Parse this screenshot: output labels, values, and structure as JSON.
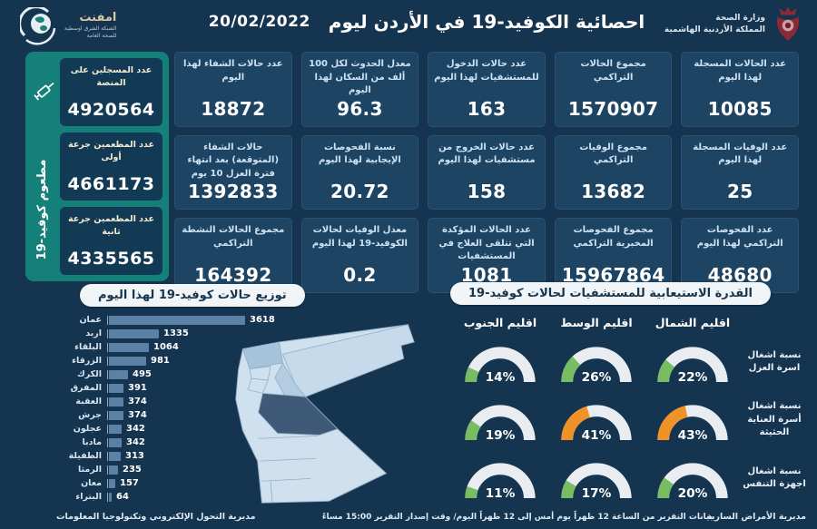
{
  "header": {
    "title": "احصائية الكوفيد-19 في الأردن ليوم",
    "date": "20/02/2022",
    "ministry": {
      "line1": "وزارة الصحة",
      "line2": "المملكة الأردنية الهاشمية"
    },
    "logo": {
      "name": "امفنت",
      "sub1": "الشبكة الشرق اوسطية",
      "sub2": "للصحة العامة"
    }
  },
  "vaccine_panel": {
    "side_label": "مطعوم كوفيد-19",
    "cards": [
      {
        "label": "عدد المسجلين على المنصة",
        "value": "4920564"
      },
      {
        "label": "عدد المطعمين جرعة أولى",
        "value": "4661173"
      },
      {
        "label": "عدد المطعمين جرعة ثانية",
        "value": "4335565"
      }
    ]
  },
  "stat_cards": [
    {
      "label": "عدد الحالات المسجلة لهذا اليوم",
      "value": "10085"
    },
    {
      "label": "مجموع الحالات التراكمي",
      "value": "1570907"
    },
    {
      "label": "عدد حالات الدخول للمستشفيات لهذا اليوم",
      "value": "163"
    },
    {
      "label": "معدل الحدوث لكل 100 ألف من السكان لهذا اليوم",
      "value": "96.3"
    },
    {
      "label": "عدد حالات الشفاء لهذا اليوم",
      "value": "18872"
    },
    {
      "label": "عدد الوفيات المسجلة لهذا اليوم",
      "value": "25"
    },
    {
      "label": "مجموع الوفيات التراكمي",
      "value": "13682"
    },
    {
      "label": "عدد حالات الخروج من مستشفيات لهذا اليوم",
      "value": "158"
    },
    {
      "label": "نسبة الفحوصات الإيجابية لهذا اليوم",
      "value": "20.72"
    },
    {
      "label": "حالات الشفاء (المتوقعة) بعد انتهاء فترة العزل 10 يوم",
      "value": "1392833"
    },
    {
      "label": "عدد الفحوصات التراكمي لهذا اليوم",
      "value": "48680"
    },
    {
      "label": "مجموع الفحوصات المخبرية التراكمي",
      "value": "15967864"
    },
    {
      "label": "عدد الحالات المؤكدة التي تتلقى العلاج في المستشفيات",
      "value": "1081"
    },
    {
      "label": "معدل الوفيات لحالات الكوفيد-19 لهذا اليوم",
      "value": "0.2"
    },
    {
      "label": "مجموع الحالات النشطة التراكمي",
      "value": "164392"
    }
  ],
  "chart_data": [
    {
      "type": "bar",
      "orientation": "horizontal",
      "title": "توزيع حالات كوفيد-19 لهذا اليوم",
      "categories": [
        "عمان",
        "اربد",
        "البلقاء",
        "الزرقاء",
        "الكرك",
        "المفرق",
        "العقبة",
        "جرش",
        "عجلون",
        "مادبا",
        "الطفيلة",
        "الرمثا",
        "معان",
        "البتراء"
      ],
      "values": [
        3618,
        1335,
        1064,
        981,
        495,
        391,
        374,
        374,
        342,
        342,
        313,
        235,
        157,
        64
      ],
      "xlim": [
        0,
        3618
      ],
      "bar_color": "#5b82a6",
      "legend": "none",
      "grid": false
    },
    {
      "type": "gauge-grid",
      "title": "القدرة الاستيعابية للمستشفيات لحالات كوفيد-19",
      "columns": [
        "اقليم الجنوب",
        "اقليم الوسط",
        "اقليم الشمال"
      ],
      "rows": [
        {
          "label": "نسبة اشغال اسرة العزل",
          "values": [
            14,
            26,
            22
          ],
          "colors": [
            "green",
            "green",
            "green"
          ]
        },
        {
          "label": "نسبة اشغال أسرة العناية الحثيثة",
          "values": [
            19,
            41,
            43
          ],
          "colors": [
            "green",
            "orange",
            "orange"
          ]
        },
        {
          "label": "نسبة اشغال اجهزة التنفس",
          "values": [
            11,
            17,
            20
          ],
          "colors": [
            "green",
            "green",
            "green"
          ]
        }
      ],
      "unit": "%",
      "range": [
        0,
        100
      ]
    }
  ],
  "footer": {
    "left": "مديرية التحول الإلكتروني وتكنولوجيا المعلومات",
    "center": "بيانات التقرير من الساعة 12 ظهراً يوم أمس إلى 12 ظهراً اليوم/ وقت إصدار التقرير 15:00 مساءً",
    "right": "مديرية الأمراض السارية"
  },
  "colors": {
    "background": "#14344f",
    "card_bg": "#1d4462",
    "teal_panel": "#15807a",
    "bar": "#5b82a6",
    "gauge_green": "#79bd63",
    "gauge_orange": "#ef9227",
    "gauge_track": "#e9edf1",
    "map_light": "#cfe1ef",
    "map_medium": "#a6c3dc",
    "map_dark": "#3e5a77"
  }
}
